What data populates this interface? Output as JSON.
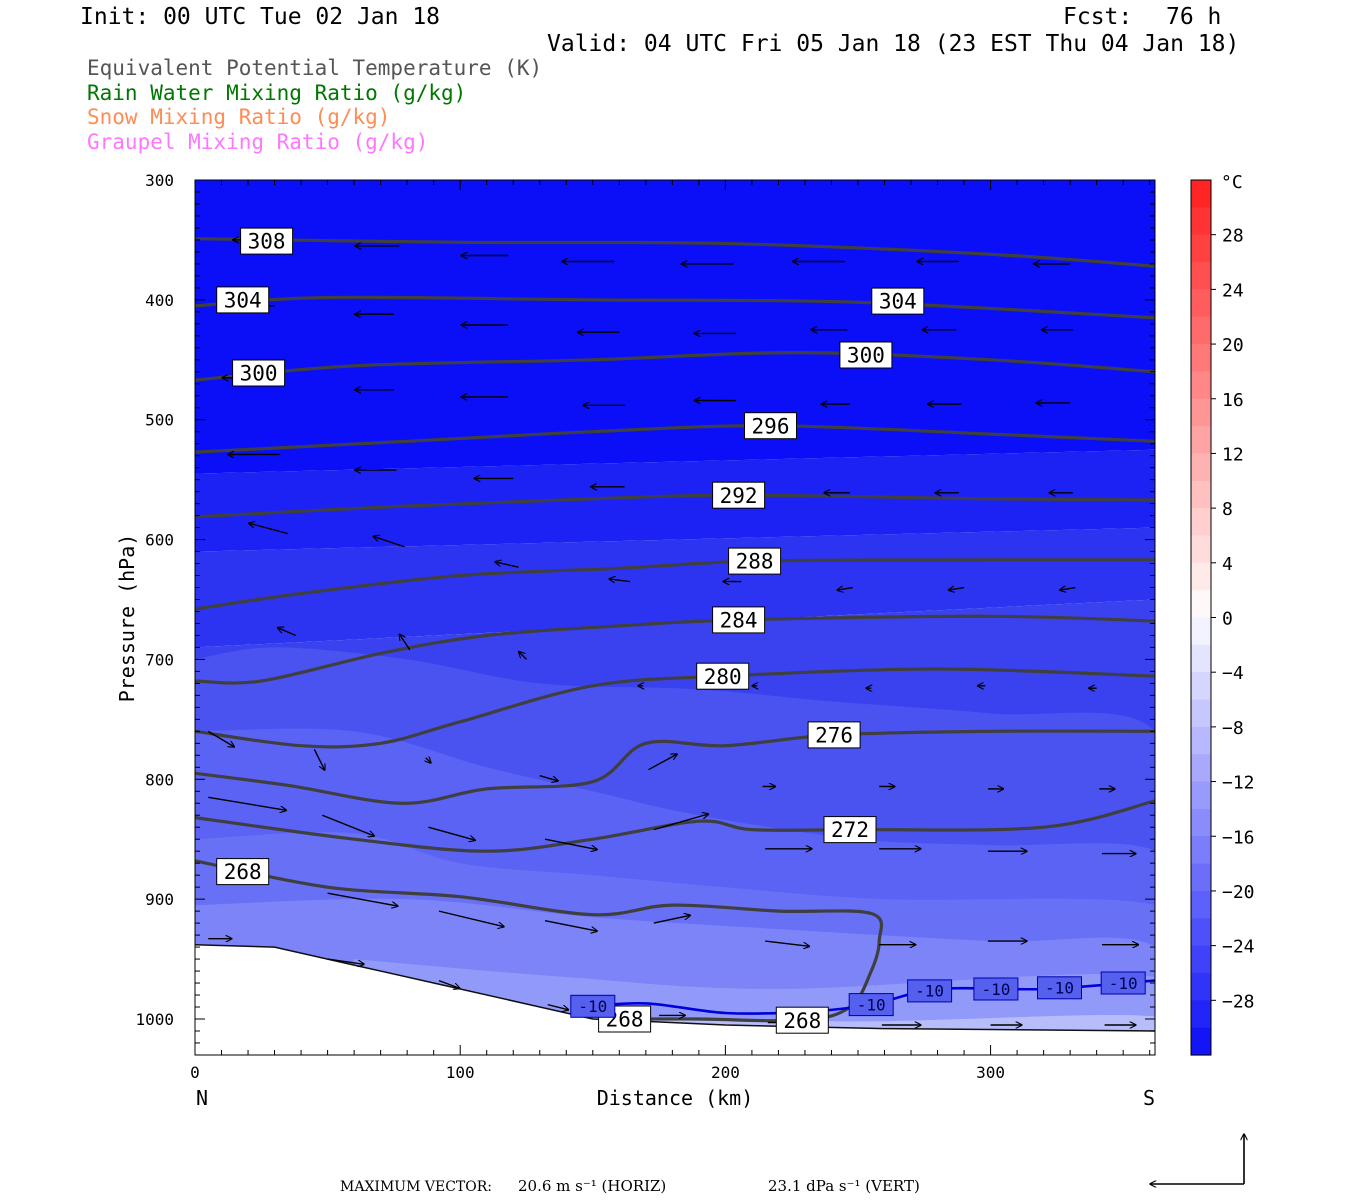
{
  "header": {
    "init": "Init: 00 UTC Tue 02 Jan 18",
    "fcst_label": "Fcst:",
    "fcst_value": "76 h",
    "valid": "Valid: 04 UTC Fri 05 Jan 18 (23 EST Thu 04 Jan 18)"
  },
  "legend": [
    {
      "label": "Equivalent Potential Temperature (K)",
      "color": "#555555"
    },
    {
      "label": "Rain Water Mixing Ratio (g/kg)",
      "color": "#007700"
    },
    {
      "label": "Snow Mixing Ratio (g/kg)",
      "color": "#ff8c55"
    },
    {
      "label": "Graupel Mixing Ratio (g/kg)",
      "color": "#ff77ff"
    }
  ],
  "footer": {
    "max_vector_label": "MAXIMUM VECTOR:",
    "horiz": "20.6 m s⁻¹ (HORIZ)",
    "vert": "23.1 dPa s⁻¹ (VERT)"
  },
  "chart_data": {
    "type": "contour",
    "xlabel": "Distance (km)",
    "ylabel": "Pressure (hPa)",
    "xlim": [
      0,
      362
    ],
    "ylim": [
      1030,
      300
    ],
    "x_ticks": [
      0,
      100,
      200,
      300
    ],
    "y_ticks": [
      300,
      400,
      500,
      600,
      700,
      800,
      900,
      1000
    ],
    "x_end_labels": {
      "left": "N",
      "right": "S"
    },
    "colorbar": {
      "unit": "°C",
      "ticks": [
        28,
        24,
        20,
        16,
        12,
        8,
        4,
        0,
        -4,
        -8,
        -12,
        -16,
        -20,
        -24,
        -28
      ],
      "range": [
        -32,
        32
      ]
    },
    "theta_e_contours": [
      {
        "value": 308,
        "label_at": [
          27,
          351
        ],
        "points": [
          [
            0,
            349
          ],
          [
            100,
            352
          ],
          [
            200,
            353
          ],
          [
            300,
            362
          ],
          [
            362,
            372
          ]
        ]
      },
      {
        "value": 304,
        "label_at": [
          18,
          400
        ],
        "label_at2": [
          265,
          401
        ],
        "points": [
          [
            0,
            405
          ],
          [
            50,
            398
          ],
          [
            150,
            400
          ],
          [
            250,
            402
          ],
          [
            362,
            415
          ]
        ]
      },
      {
        "value": 300,
        "label_at": [
          24,
          461
        ],
        "label_at2": [
          253,
          446
        ],
        "points": [
          [
            0,
            467
          ],
          [
            60,
            455
          ],
          [
            150,
            450
          ],
          [
            225,
            444
          ],
          [
            300,
            450
          ],
          [
            362,
            460
          ]
        ]
      },
      {
        "value": 296,
        "label_at": [
          217,
          505
        ],
        "points": [
          [
            0,
            527
          ],
          [
            80,
            518
          ],
          [
            150,
            510
          ],
          [
            217,
            505
          ],
          [
            300,
            512
          ],
          [
            362,
            518
          ]
        ]
      },
      {
        "value": 292,
        "label_at": [
          205,
          563
        ],
        "points": [
          [
            0,
            581
          ],
          [
            80,
            572
          ],
          [
            150,
            566
          ],
          [
            205,
            563
          ],
          [
            300,
            566
          ],
          [
            362,
            567
          ]
        ]
      },
      {
        "value": 288,
        "label_at": [
          211,
          618
        ],
        "points": [
          [
            0,
            658
          ],
          [
            40,
            645
          ],
          [
            100,
            630
          ],
          [
            160,
            624
          ],
          [
            211,
            618
          ],
          [
            300,
            617
          ],
          [
            362,
            617
          ]
        ]
      },
      {
        "value": 284,
        "label_at": [
          205,
          667
        ],
        "points": [
          [
            0,
            718
          ],
          [
            25,
            718
          ],
          [
            70,
            695
          ],
          [
            110,
            680
          ],
          [
            160,
            672
          ],
          [
            205,
            667
          ],
          [
            300,
            664
          ],
          [
            362,
            668
          ]
        ]
      },
      {
        "value": 280,
        "label_at": [
          199,
          714
        ],
        "points": [
          [
            0,
            760
          ],
          [
            40,
            772
          ],
          [
            70,
            770
          ],
          [
            100,
            752
          ],
          [
            150,
            722
          ],
          [
            199,
            714
          ],
          [
            280,
            708
          ],
          [
            362,
            714
          ]
        ]
      },
      {
        "value": 276,
        "label_at": [
          241,
          763
        ],
        "points": [
          [
            0,
            795
          ],
          [
            35,
            805
          ],
          [
            78,
            820
          ],
          [
            110,
            808
          ],
          [
            150,
            802
          ],
          [
            170,
            770
          ],
          [
            200,
            772
          ],
          [
            241,
            763
          ],
          [
            300,
            760
          ],
          [
            362,
            760
          ]
        ]
      },
      {
        "value": 272,
        "label_at": [
          247,
          842
        ],
        "points": [
          [
            0,
            832
          ],
          [
            60,
            850
          ],
          [
            110,
            860
          ],
          [
            150,
            850
          ],
          [
            190,
            835
          ],
          [
            210,
            842
          ],
          [
            247,
            842
          ],
          [
            320,
            840
          ],
          [
            362,
            818
          ]
        ]
      },
      {
        "value": 268,
        "label_at": [
          18,
          877
        ],
        "label_at2": [
          162,
          1000
        ],
        "label_at3": [
          229,
          1001
        ],
        "points": [
          [
            0,
            868
          ],
          [
            50,
            890
          ],
          [
            100,
            898
          ],
          [
            150,
            913
          ],
          [
            180,
            905
          ],
          [
            220,
            910
          ],
          [
            255,
            912
          ],
          [
            258,
            935
          ],
          [
            255,
            960
          ],
          [
            247,
            990
          ],
          [
            229,
            1001
          ],
          [
            190,
            1000
          ],
          [
            162,
            1000
          ]
        ]
      }
    ],
    "temperature_minus10_contour": {
      "value": -10,
      "labels_x": [
        150,
        255,
        277,
        302,
        326,
        350
      ],
      "points": [
        [
          145,
          990
        ],
        [
          170,
          987
        ],
        [
          200,
          995
        ],
        [
          230,
          994
        ],
        [
          255,
          988
        ],
        [
          280,
          975
        ],
        [
          320,
          975
        ],
        [
          362,
          968
        ]
      ]
    },
    "terrain_pressure": [
      [
        0,
        938
      ],
      [
        30,
        940
      ],
      [
        60,
        955
      ],
      [
        90,
        970
      ],
      [
        130,
        990
      ],
      [
        150,
        1000
      ],
      [
        200,
        1005
      ],
      [
        260,
        1008
      ],
      [
        362,
        1010
      ]
    ],
    "wind_vectors": [
      {
        "x": 28,
        "p": 350,
        "u": -14,
        "w": 0
      },
      {
        "x": 77,
        "p": 355,
        "u": -17,
        "w": 0
      },
      {
        "x": 118,
        "p": 363,
        "u": -18,
        "w": 0
      },
      {
        "x": 158,
        "p": 368,
        "u": -20,
        "w": 0
      },
      {
        "x": 203,
        "p": 370,
        "u": -20,
        "w": 0
      },
      {
        "x": 245,
        "p": 368,
        "u": -20,
        "w": 0
      },
      {
        "x": 288,
        "p": 368,
        "u": -16,
        "w": 0
      },
      {
        "x": 330,
        "p": 370,
        "u": -14,
        "w": 0
      },
      {
        "x": 30,
        "p": 405,
        "u": -13,
        "w": 0
      },
      {
        "x": 75,
        "p": 412,
        "u": -15,
        "w": 0
      },
      {
        "x": 118,
        "p": 421,
        "u": -18,
        "w": 0
      },
      {
        "x": 160,
        "p": 427,
        "u": -16,
        "w": 0
      },
      {
        "x": 204,
        "p": 428,
        "u": -16,
        "w": 0
      },
      {
        "x": 246,
        "p": 425,
        "u": -14,
        "w": 0
      },
      {
        "x": 287,
        "p": 425,
        "u": -13,
        "w": 0
      },
      {
        "x": 331,
        "p": 425,
        "u": -12,
        "w": 0
      },
      {
        "x": 23,
        "p": 465,
        "u": -13,
        "w": 0
      },
      {
        "x": 75,
        "p": 475,
        "u": -15,
        "w": 0
      },
      {
        "x": 118,
        "p": 481,
        "u": -18,
        "w": 0
      },
      {
        "x": 162,
        "p": 488,
        "u": -16,
        "w": 0
      },
      {
        "x": 204,
        "p": 484,
        "u": -16,
        "w": 0
      },
      {
        "x": 247,
        "p": 487,
        "u": -11,
        "w": 0
      },
      {
        "x": 289,
        "p": 487,
        "u": -13,
        "w": 0
      },
      {
        "x": 330,
        "p": 486,
        "u": -13,
        "w": 0
      },
      {
        "x": 32,
        "p": 529,
        "u": -20,
        "w": 0
      },
      {
        "x": 76,
        "p": 542,
        "u": -16,
        "w": 0
      },
      {
        "x": 120,
        "p": 549,
        "u": -15,
        "w": 0
      },
      {
        "x": 162,
        "p": 556,
        "u": -13,
        "w": 0
      },
      {
        "x": 208,
        "p": 556,
        "u": -12,
        "w": 0
      },
      {
        "x": 247,
        "p": 561,
        "u": -10,
        "w": 0
      },
      {
        "x": 288,
        "p": 561,
        "u": -9,
        "w": 0
      },
      {
        "x": 331,
        "p": 561,
        "u": -9,
        "w": 0
      },
      {
        "x": 35,
        "p": 595,
        "u": -15,
        "w": 4
      },
      {
        "x": 79,
        "p": 606,
        "u": -12,
        "w": 4
      },
      {
        "x": 122,
        "p": 623,
        "u": -9,
        "w": 2
      },
      {
        "x": 164,
        "p": 635,
        "u": -8,
        "w": 1
      },
      {
        "x": 206,
        "p": 635,
        "u": -7,
        "w": 0
      },
      {
        "x": 248,
        "p": 640,
        "u": -6,
        "w": -1
      },
      {
        "x": 290,
        "p": 640,
        "u": -6,
        "w": -1
      },
      {
        "x": 332,
        "p": 640,
        "u": -6,
        "w": -1
      },
      {
        "x": 38,
        "p": 680,
        "u": -7,
        "w": 3
      },
      {
        "x": 81,
        "p": 692,
        "u": -4,
        "w": 6
      },
      {
        "x": 125,
        "p": 700,
        "u": -3,
        "w": 3
      },
      {
        "x": 169,
        "p": 722,
        "u": -2,
        "w": 0
      },
      {
        "x": 212,
        "p": 722,
        "u": -2,
        "w": 0
      },
      {
        "x": 255,
        "p": 724,
        "u": -2,
        "w": 0
      },
      {
        "x": 298,
        "p": 722,
        "u": -3,
        "w": 0
      },
      {
        "x": 340,
        "p": 724,
        "u": -3,
        "w": 0
      },
      {
        "x": 5,
        "p": 760,
        "u": 10,
        "w": -6
      },
      {
        "x": 45,
        "p": 775,
        "u": 4,
        "w": -8
      },
      {
        "x": 87,
        "p": 782,
        "u": 2,
        "w": -2
      },
      {
        "x": 130,
        "p": 797,
        "u": 7,
        "w": -2
      },
      {
        "x": 171,
        "p": 792,
        "u": 11,
        "w": 6
      },
      {
        "x": 214,
        "p": 806,
        "u": 5,
        "w": 0
      },
      {
        "x": 258,
        "p": 806,
        "u": 6,
        "w": 0
      },
      {
        "x": 299,
        "p": 808,
        "u": 6,
        "w": 0
      },
      {
        "x": 341,
        "p": 808,
        "u": 6,
        "w": 0
      },
      {
        "x": 5,
        "p": 815,
        "u": 30,
        "w": -5
      },
      {
        "x": 48,
        "p": 830,
        "u": 20,
        "w": -8
      },
      {
        "x": 88,
        "p": 840,
        "u": 18,
        "w": -5
      },
      {
        "x": 132,
        "p": 850,
        "u": 20,
        "w": -4
      },
      {
        "x": 173,
        "p": 842,
        "u": 21,
        "w": 6
      },
      {
        "x": 215,
        "p": 858,
        "u": 18,
        "w": 0
      },
      {
        "x": 258,
        "p": 858,
        "u": 16,
        "w": 0
      },
      {
        "x": 299,
        "p": 860,
        "u": 15,
        "w": 0
      },
      {
        "x": 342,
        "p": 862,
        "u": 13,
        "w": 0
      },
      {
        "x": 8,
        "p": 880,
        "u": 20,
        "w": -2
      },
      {
        "x": 50,
        "p": 895,
        "u": 27,
        "w": -5
      },
      {
        "x": 92,
        "p": 910,
        "u": 25,
        "w": -6
      },
      {
        "x": 132,
        "p": 918,
        "u": 20,
        "w": -4
      },
      {
        "x": 173,
        "p": 920,
        "u": 14,
        "w": 3
      },
      {
        "x": 215,
        "p": 935,
        "u": 17,
        "w": -2
      },
      {
        "x": 258,
        "p": 938,
        "u": 14,
        "w": 0
      },
      {
        "x": 299,
        "p": 935,
        "u": 15,
        "w": 0
      },
      {
        "x": 342,
        "p": 938,
        "u": 14,
        "w": 0
      },
      {
        "x": 5,
        "p": 933,
        "u": 9,
        "w": 0
      },
      {
        "x": 50,
        "p": 950,
        "u": 14,
        "w": -2
      },
      {
        "x": 92,
        "p": 968,
        "u": 8,
        "w": -3
      },
      {
        "x": 133,
        "p": 988,
        "u": 8,
        "w": -2
      },
      {
        "x": 175,
        "p": 997,
        "u": 10,
        "w": 0
      },
      {
        "x": 216,
        "p": 1003,
        "u": 9,
        "w": 0
      },
      {
        "x": 259,
        "p": 1005,
        "u": 15,
        "w": 0
      },
      {
        "x": 300,
        "p": 1005,
        "u": 12,
        "w": 0
      },
      {
        "x": 343,
        "p": 1005,
        "u": 12,
        "w": 0
      }
    ]
  }
}
